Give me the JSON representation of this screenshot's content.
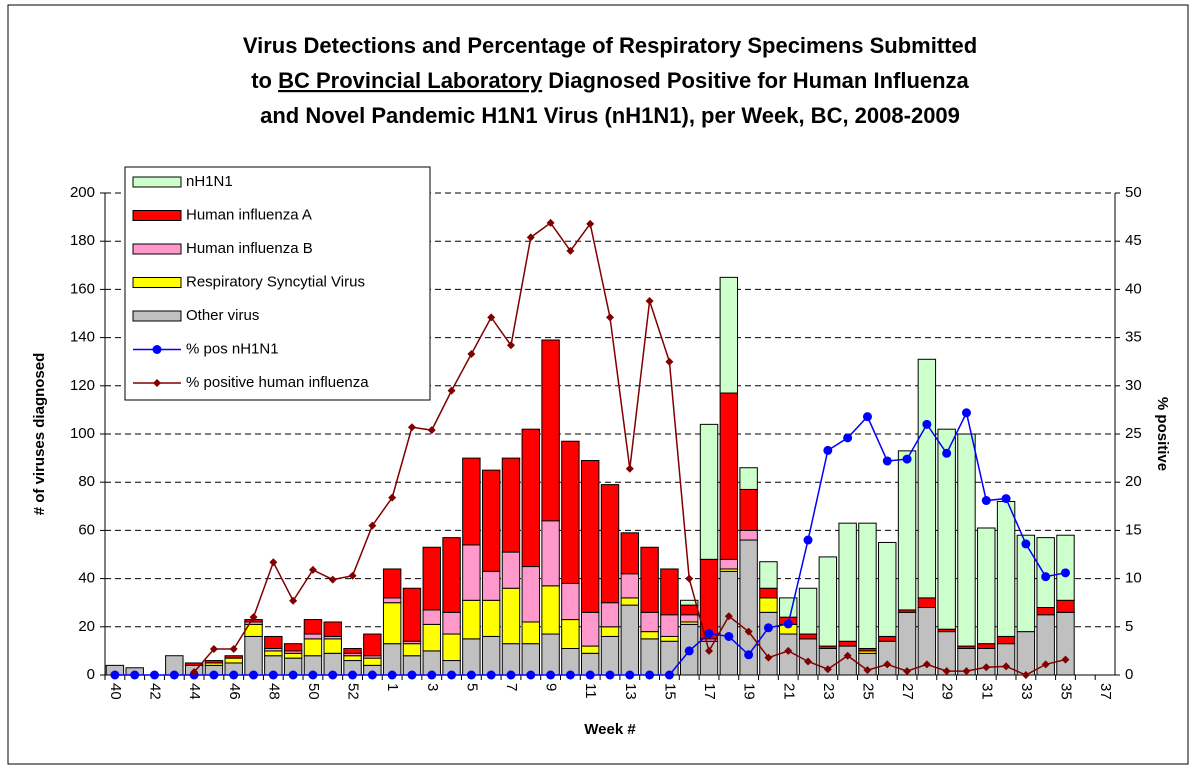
{
  "chart_data": {
    "type": "combo",
    "title": [
      [
        "Virus Detections and Percentage of Respiratory Specimens Submitted"
      ],
      [
        "to ",
        "BC Provincial Laboratory",
        " Diagnosed Positive for Human Influenza"
      ],
      [
        "and Novel Pandemic H1N1 Virus (nH1N1), per Week, BC, 2008-2009"
      ]
    ],
    "x_label": "Week #",
    "y_label": "# of viruses diagnosed",
    "y2_label": "% positive",
    "categories": [
      "40",
      null,
      "42",
      null,
      "44",
      null,
      "46",
      null,
      "48",
      null,
      "50",
      null,
      "52",
      null,
      "1",
      null,
      "3",
      null,
      "5",
      null,
      "7",
      null,
      "9",
      null,
      "11",
      null,
      "13",
      null,
      "15",
      null,
      "17",
      null,
      "19",
      null,
      "21",
      null,
      "23",
      null,
      "25",
      null,
      "27",
      null,
      "29",
      null,
      "31",
      null,
      "33",
      null,
      "35",
      null,
      "37"
    ],
    "ylim": [
      0,
      200
    ],
    "yticks": [
      0,
      20,
      40,
      60,
      80,
      100,
      120,
      140,
      160,
      180,
      200
    ],
    "y2lim": [
      0,
      50
    ],
    "y2ticks": [
      0,
      5,
      10,
      15,
      20,
      25,
      30,
      35,
      40,
      45,
      50
    ],
    "grid": true,
    "stacked": true,
    "legend": "upper left",
    "series": [
      {
        "name": "nH1N1",
        "type": "bar",
        "color": "#ccffcc",
        "values": [
          0,
          0,
          0,
          0,
          0,
          0,
          0,
          0,
          0,
          0,
          0,
          0,
          0,
          0,
          0,
          0,
          0,
          0,
          0,
          0,
          0,
          0,
          0,
          0,
          0,
          0,
          0,
          0,
          0,
          2,
          56,
          48,
          9,
          11,
          8,
          19,
          37,
          49,
          52,
          39,
          66,
          99,
          83,
          88,
          48,
          56,
          40,
          29,
          27,
          null,
          null
        ]
      },
      {
        "name": "Human influenza A",
        "type": "bar",
        "color": "#ff0000",
        "values": [
          0,
          0,
          0,
          0,
          1,
          1,
          1,
          1,
          5,
          3,
          6,
          6,
          2,
          9,
          12,
          22,
          26,
          31,
          36,
          42,
          39,
          57,
          75,
          59,
          63,
          49,
          17,
          27,
          19,
          4,
          33,
          69,
          17,
          4,
          3,
          2,
          1,
          2,
          1,
          2,
          1,
          4,
          1,
          1,
          2,
          3,
          0,
          3,
          5,
          null,
          null
        ]
      },
      {
        "name": "Human influenza B",
        "type": "bar",
        "color": "#ff99cc",
        "values": [
          0,
          0,
          0,
          0,
          0,
          0,
          0,
          1,
          1,
          1,
          2,
          1,
          1,
          1,
          2,
          1,
          6,
          9,
          23,
          12,
          15,
          23,
          27,
          15,
          14,
          10,
          10,
          8,
          9,
          3,
          1,
          4,
          4,
          0,
          0,
          0,
          0,
          0,
          0,
          0,
          0,
          0,
          0,
          0,
          0,
          0,
          0,
          0,
          0,
          null,
          null
        ]
      },
      {
        "name": "Respiratory Syncytial Virus",
        "type": "bar",
        "color": "#ffff00",
        "values": [
          0,
          0,
          0,
          0,
          0,
          1,
          2,
          5,
          2,
          2,
          7,
          6,
          2,
          3,
          17,
          5,
          11,
          11,
          16,
          15,
          23,
          9,
          20,
          12,
          3,
          4,
          3,
          3,
          2,
          1,
          0,
          1,
          0,
          6,
          4,
          0,
          0,
          0,
          1,
          0,
          0,
          0,
          0,
          0,
          0,
          0,
          0,
          0,
          0,
          null,
          null
        ]
      },
      {
        "name": "Other virus",
        "type": "bar",
        "color": "#c0c0c0",
        "values": [
          4,
          3,
          0,
          8,
          4,
          4,
          5,
          16,
          8,
          7,
          8,
          9,
          6,
          4,
          13,
          8,
          10,
          6,
          15,
          16,
          13,
          13,
          17,
          11,
          9,
          16,
          29,
          15,
          14,
          21,
          14,
          43,
          56,
          26,
          17,
          15,
          11,
          12,
          9,
          14,
          26,
          28,
          18,
          11,
          11,
          13,
          18,
          25,
          26,
          null,
          null
        ]
      },
      {
        "name": "% pos nH1N1",
        "type": "line",
        "axis": "y2",
        "color": "#0000ff",
        "marker": "circle",
        "values": [
          0,
          0,
          0,
          0,
          0,
          0,
          0,
          0,
          0,
          0,
          0,
          0,
          0,
          0,
          0,
          0,
          0,
          0,
          0,
          0,
          0,
          0,
          0,
          0,
          0,
          0,
          0,
          0,
          0,
          2.5,
          4.3,
          4.0,
          2.1,
          4.9,
          5.3,
          14,
          23.3,
          24.6,
          26.8,
          22.2,
          22.4,
          26,
          23,
          27.2,
          18.1,
          18.3,
          13.6,
          10.2,
          10.6,
          null,
          null
        ]
      },
      {
        "name": "% positive human influenza",
        "type": "line",
        "axis": "y2",
        "color": "#800000",
        "marker": "diamond",
        "values": [
          null,
          null,
          null,
          null,
          0.3,
          2.7,
          2.7,
          6,
          11.7,
          7.7,
          10.9,
          9.9,
          10.3,
          15.5,
          18.4,
          25.7,
          25.4,
          29.5,
          33.3,
          37.1,
          34.2,
          45.4,
          46.9,
          44,
          46.8,
          37.1,
          21.4,
          38.8,
          32.5,
          10,
          2.5,
          6.1,
          4.5,
          1.8,
          2.5,
          1.4,
          0.6,
          2,
          0.5,
          1.1,
          0.4,
          1.1,
          0.4,
          0.4,
          0.8,
          0.9,
          0,
          1.1,
          1.6,
          null,
          null
        ]
      }
    ]
  }
}
